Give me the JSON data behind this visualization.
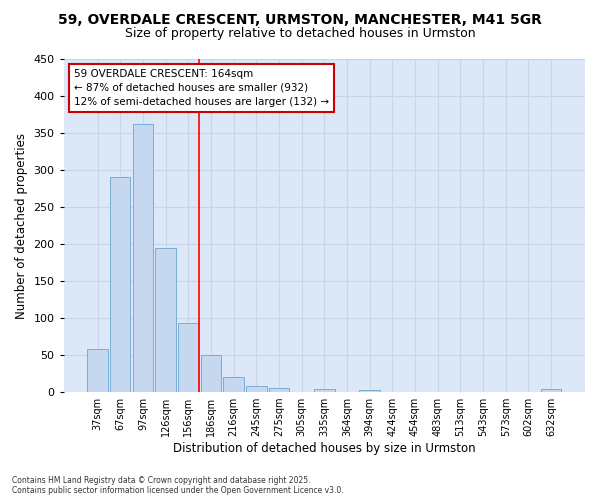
{
  "title_line1": "59, OVERDALE CRESCENT, URMSTON, MANCHESTER, M41 5GR",
  "title_line2": "Size of property relative to detached houses in Urmston",
  "xlabel": "Distribution of detached houses by size in Urmston",
  "ylabel": "Number of detached properties",
  "bar_labels": [
    "37sqm",
    "67sqm",
    "97sqm",
    "126sqm",
    "156sqm",
    "186sqm",
    "216sqm",
    "245sqm",
    "275sqm",
    "305sqm",
    "335sqm",
    "364sqm",
    "394sqm",
    "424sqm",
    "454sqm",
    "483sqm",
    "513sqm",
    "543sqm",
    "573sqm",
    "602sqm",
    "632sqm"
  ],
  "bar_values": [
    58,
    291,
    362,
    195,
    93,
    50,
    20,
    8,
    5,
    0,
    4,
    0,
    3,
    0,
    0,
    0,
    0,
    0,
    0,
    0,
    4
  ],
  "bar_color": "#c5d8f0",
  "bar_edge_color": "#7aadd4",
  "ylim": [
    0,
    450
  ],
  "yticks": [
    0,
    50,
    100,
    150,
    200,
    250,
    300,
    350,
    400,
    450
  ],
  "red_line_index": 4,
  "annotation_text": "59 OVERDALE CRESCENT: 164sqm\n← 87% of detached houses are smaller (932)\n12% of semi-detached houses are larger (132) →",
  "annotation_box_color": "#ffffff",
  "annotation_box_edge": "#cc0000",
  "footer_text": "Contains HM Land Registry data © Crown copyright and database right 2025.\nContains public sector information licensed under the Open Government Licence v3.0.",
  "background_color": "#ffffff",
  "grid_color": "#c8d4e8",
  "plot_bg_color": "#dce8f8"
}
